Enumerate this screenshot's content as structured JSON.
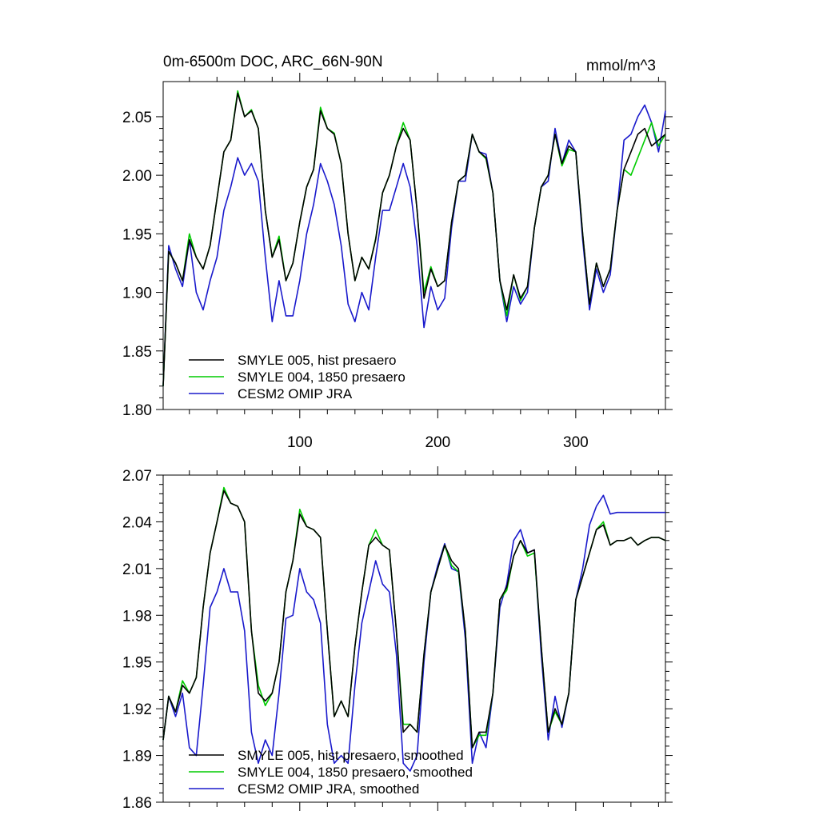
{
  "colors": {
    "black": "#000000",
    "green": "#00cc00",
    "blue": "#1a1acc"
  },
  "chart_data": [
    {
      "type": "line",
      "title": "0m-6500m DOC, ARC_66N-90N",
      "units": "mmol/m^3",
      "xlim": [
        1,
        365
      ],
      "ylim": [
        1.8,
        2.08
      ],
      "xticks": [
        100,
        200,
        300
      ],
      "xtick_labels": [
        "100",
        "200",
        "300"
      ],
      "yticks": [
        1.8,
        1.85,
        1.9,
        1.95,
        2.0,
        2.05
      ],
      "ytick_labels": [
        "1.80",
        "1.85",
        "1.90",
        "1.95",
        "2.00",
        "2.05"
      ],
      "legend": [
        "SMYLE 005, hist presaero",
        "SMYLE 004, 1850 presaero",
        "CESM2 OMIP JRA"
      ],
      "series": [
        {
          "name": "SMYLE 005, hist presaero",
          "color": "black",
          "x": [
            1,
            5,
            10,
            15,
            20,
            25,
            30,
            35,
            40,
            45,
            50,
            55,
            60,
            65,
            70,
            75,
            80,
            85,
            90,
            95,
            100,
            105,
            110,
            115,
            120,
            125,
            130,
            135,
            140,
            145,
            150,
            155,
            160,
            165,
            170,
            175,
            180,
            185,
            190,
            195,
            200,
            205,
            210,
            215,
            220,
            225,
            230,
            235,
            240,
            245,
            250,
            255,
            260,
            265,
            270,
            275,
            280,
            285,
            290,
            295,
            300,
            305,
            310,
            315,
            320,
            325,
            330,
            335,
            340,
            345,
            350,
            355,
            360,
            365
          ],
          "y": [
            1.82,
            1.935,
            1.925,
            1.91,
            1.945,
            1.93,
            1.92,
            1.94,
            1.98,
            2.02,
            2.03,
            2.07,
            2.05,
            2.055,
            2.04,
            1.97,
            1.93,
            1.945,
            1.91,
            1.925,
            1.96,
            1.99,
            2.005,
            2.055,
            2.04,
            2.035,
            2.01,
            1.95,
            1.91,
            1.93,
            1.92,
            1.945,
            1.985,
            2.0,
            2.025,
            2.04,
            2.03,
            1.97,
            1.895,
            1.92,
            1.905,
            1.91,
            1.96,
            1.995,
            2.0,
            2.035,
            2.02,
            2.015,
            1.985,
            1.91,
            1.885,
            1.915,
            1.895,
            1.905,
            1.955,
            1.99,
            2.0,
            2.035,
            2.01,
            2.025,
            2.02,
            1.95,
            1.89,
            1.925,
            1.905,
            1.92,
            1.97,
            2.005,
            2.02,
            2.035,
            2.04,
            2.025,
            2.03,
            2.035
          ]
        },
        {
          "name": "SMYLE 004, 1850 presaero",
          "color": "green",
          "x": [
            1,
            5,
            10,
            15,
            20,
            25,
            30,
            35,
            40,
            45,
            50,
            55,
            60,
            65,
            70,
            75,
            80,
            85,
            90,
            95,
            100,
            105,
            110,
            115,
            120,
            125,
            130,
            135,
            140,
            145,
            150,
            155,
            160,
            165,
            170,
            175,
            180,
            185,
            190,
            195,
            200,
            205,
            210,
            215,
            220,
            225,
            230,
            235,
            240,
            245,
            250,
            255,
            260,
            265,
            270,
            275,
            280,
            285,
            290,
            295,
            300,
            305,
            310,
            315,
            320,
            325,
            330,
            335,
            340,
            345,
            350,
            355,
            360,
            365
          ],
          "y": [
            1.82,
            1.935,
            1.925,
            1.91,
            1.95,
            1.93,
            1.92,
            1.94,
            1.98,
            2.02,
            2.03,
            2.072,
            2.05,
            2.056,
            2.04,
            1.97,
            1.93,
            1.948,
            1.91,
            1.925,
            1.96,
            1.99,
            2.005,
            2.058,
            2.04,
            2.036,
            2.01,
            1.95,
            1.91,
            1.93,
            1.92,
            1.946,
            1.985,
            2.0,
            2.025,
            2.045,
            2.03,
            1.97,
            1.9,
            1.922,
            1.905,
            1.91,
            1.96,
            1.995,
            2.0,
            2.035,
            2.02,
            2.014,
            1.985,
            1.91,
            1.88,
            1.915,
            1.893,
            1.905,
            1.955,
            1.99,
            2.0,
            2.035,
            2.008,
            2.022,
            2.02,
            1.95,
            1.89,
            1.925,
            1.905,
            1.92,
            1.97,
            2.005,
            2.0,
            2.015,
            2.03,
            2.045,
            2.025,
            2.035
          ]
        },
        {
          "name": "CESM2 OMIP JRA",
          "color": "blue",
          "x": [
            1,
            5,
            10,
            15,
            20,
            25,
            30,
            35,
            40,
            45,
            50,
            55,
            60,
            65,
            70,
            75,
            80,
            85,
            90,
            95,
            100,
            105,
            110,
            115,
            120,
            125,
            130,
            135,
            140,
            145,
            150,
            155,
            160,
            165,
            170,
            175,
            180,
            185,
            190,
            195,
            200,
            205,
            210,
            215,
            220,
            225,
            230,
            235,
            240,
            245,
            250,
            255,
            260,
            265,
            270,
            275,
            280,
            285,
            290,
            295,
            300,
            305,
            310,
            315,
            320,
            325,
            330,
            335,
            340,
            345,
            350,
            355,
            360,
            365
          ],
          "y": [
            1.82,
            1.94,
            1.92,
            1.905,
            1.945,
            1.9,
            1.885,
            1.91,
            1.93,
            1.97,
            1.99,
            2.015,
            2.0,
            2.01,
            1.995,
            1.93,
            1.875,
            1.91,
            1.88,
            1.88,
            1.91,
            1.95,
            1.975,
            2.01,
            1.995,
            1.975,
            1.94,
            1.89,
            1.875,
            1.9,
            1.885,
            1.93,
            1.97,
            1.97,
            1.99,
            2.01,
            1.99,
            1.94,
            1.87,
            1.905,
            1.885,
            1.895,
            1.955,
            1.995,
            1.995,
            2.035,
            2.02,
            2.018,
            1.985,
            1.91,
            1.875,
            1.905,
            1.89,
            1.9,
            1.955,
            1.99,
            1.995,
            2.04,
            2.01,
            2.03,
            2.02,
            1.945,
            1.885,
            1.92,
            1.9,
            1.915,
            1.97,
            2.03,
            2.035,
            2.05,
            2.06,
            2.045,
            2.02,
            2.055
          ]
        }
      ]
    },
    {
      "type": "line",
      "title": "",
      "units": "",
      "xlim": [
        1,
        365
      ],
      "ylim": [
        1.86,
        2.07
      ],
      "xticks": [
        100,
        200,
        300
      ],
      "xtick_labels": [],
      "yticks": [
        1.86,
        1.89,
        1.92,
        1.95,
        1.98,
        2.01,
        2.04,
        2.07
      ],
      "ytick_labels": [
        "1.86",
        "1.89",
        "1.92",
        "1.95",
        "1.98",
        "2.01",
        "2.04",
        "2.07"
      ],
      "legend": [
        "SMYLE 005, hist presaero, smoothed",
        "SMYLE 004, 1850 presaero, smoothed",
        "CESM2 OMIP JRA, smoothed"
      ],
      "series": [
        {
          "name": "SMYLE 005, hist presaero, smoothed",
          "color": "black",
          "x": [
            1,
            5,
            10,
            15,
            20,
            25,
            30,
            35,
            40,
            45,
            50,
            55,
            60,
            65,
            70,
            75,
            80,
            85,
            90,
            95,
            100,
            105,
            110,
            115,
            120,
            125,
            130,
            135,
            140,
            145,
            150,
            155,
            160,
            165,
            170,
            175,
            180,
            185,
            190,
            195,
            200,
            205,
            210,
            215,
            220,
            225,
            230,
            235,
            240,
            245,
            250,
            255,
            260,
            265,
            270,
            275,
            280,
            285,
            290,
            295,
            300,
            305,
            310,
            315,
            320,
            325,
            330,
            335,
            340,
            345,
            350,
            355,
            360,
            365
          ],
          "y": [
            1.9,
            1.928,
            1.918,
            1.935,
            1.93,
            1.94,
            1.985,
            2.02,
            2.04,
            2.06,
            2.052,
            2.05,
            2.04,
            1.97,
            1.93,
            1.925,
            1.93,
            1.95,
            1.995,
            2.015,
            2.045,
            2.037,
            2.035,
            2.03,
            1.97,
            1.915,
            1.925,
            1.915,
            1.96,
            1.995,
            2.025,
            2.03,
            2.025,
            2.022,
            1.97,
            1.905,
            1.91,
            1.905,
            1.955,
            1.995,
            2.01,
            2.025,
            2.015,
            2.01,
            1.97,
            1.895,
            1.905,
            1.905,
            1.93,
            1.99,
            1.998,
            2.018,
            2.028,
            2.02,
            2.022,
            1.96,
            1.905,
            1.92,
            1.91,
            1.93,
            1.99,
            2.005,
            2.02,
            2.035,
            2.038,
            2.025,
            2.028,
            2.028,
            2.03,
            2.025,
            2.028,
            2.03,
            2.03,
            2.028
          ]
        },
        {
          "name": "SMYLE 004, 1850 presaero, smoothed",
          "color": "green",
          "x": [
            1,
            5,
            10,
            15,
            20,
            25,
            30,
            35,
            40,
            45,
            50,
            55,
            60,
            65,
            70,
            75,
            80,
            85,
            90,
            95,
            100,
            105,
            110,
            115,
            120,
            125,
            130,
            135,
            140,
            145,
            150,
            155,
            160,
            165,
            170,
            175,
            180,
            185,
            190,
            195,
            200,
            205,
            210,
            215,
            220,
            225,
            230,
            235,
            240,
            245,
            250,
            255,
            260,
            265,
            270,
            275,
            280,
            285,
            290,
            295,
            300,
            305,
            310,
            315,
            320,
            325,
            330,
            335,
            340,
            345,
            350,
            355,
            360,
            365
          ],
          "y": [
            1.9,
            1.928,
            1.918,
            1.938,
            1.93,
            1.94,
            1.985,
            2.02,
            2.04,
            2.062,
            2.052,
            2.05,
            2.04,
            1.97,
            1.935,
            1.922,
            1.93,
            1.95,
            1.995,
            2.015,
            2.048,
            2.037,
            2.035,
            2.03,
            1.97,
            1.915,
            1.925,
            1.915,
            1.96,
            1.995,
            2.025,
            2.035,
            2.025,
            2.022,
            1.97,
            1.91,
            1.91,
            1.905,
            1.955,
            1.995,
            2.01,
            2.025,
            2.012,
            2.008,
            1.97,
            1.895,
            1.903,
            1.903,
            1.93,
            1.99,
            1.996,
            2.018,
            2.028,
            2.018,
            2.02,
            1.96,
            1.905,
            1.918,
            1.91,
            1.93,
            1.99,
            2.005,
            2.02,
            2.035,
            2.04,
            2.025,
            2.028,
            2.028,
            2.03,
            2.025,
            2.028,
            2.03,
            2.03,
            2.028
          ]
        },
        {
          "name": "CESM2 OMIP JRA, smoothed",
          "color": "blue",
          "x": [
            1,
            5,
            10,
            15,
            20,
            25,
            30,
            35,
            40,
            45,
            50,
            55,
            60,
            65,
            70,
            75,
            80,
            85,
            90,
            95,
            100,
            105,
            110,
            115,
            120,
            125,
            130,
            135,
            140,
            145,
            150,
            155,
            160,
            165,
            170,
            175,
            180,
            185,
            190,
            195,
            200,
            205,
            210,
            215,
            220,
            225,
            230,
            235,
            240,
            245,
            250,
            255,
            260,
            265,
            270,
            275,
            280,
            285,
            290,
            295,
            300,
            305,
            310,
            315,
            320,
            325,
            330,
            335,
            340,
            345,
            350,
            355,
            360,
            365
          ],
          "y": [
            1.9,
            1.928,
            1.915,
            1.93,
            1.895,
            1.89,
            1.935,
            1.985,
            1.995,
            2.01,
            1.995,
            1.995,
            1.97,
            1.905,
            1.885,
            1.9,
            1.89,
            1.93,
            1.978,
            1.98,
            2.01,
            1.995,
            1.99,
            1.975,
            1.91,
            1.885,
            1.89,
            1.885,
            1.935,
            1.975,
            1.995,
            2.015,
            2.0,
            1.995,
            1.955,
            1.885,
            1.88,
            1.89,
            1.95,
            1.995,
            2.012,
            2.026,
            2.01,
            2.008,
            1.965,
            1.885,
            1.905,
            1.895,
            1.93,
            1.985,
            2.0,
            2.028,
            2.035,
            2.02,
            2.022,
            1.955,
            1.9,
            1.928,
            1.908,
            1.93,
            1.99,
            2.01,
            2.038,
            2.05,
            2.057,
            2.045,
            2.046,
            2.046,
            2.046,
            2.046,
            2.046,
            2.046,
            2.046,
            2.046
          ]
        }
      ]
    }
  ]
}
